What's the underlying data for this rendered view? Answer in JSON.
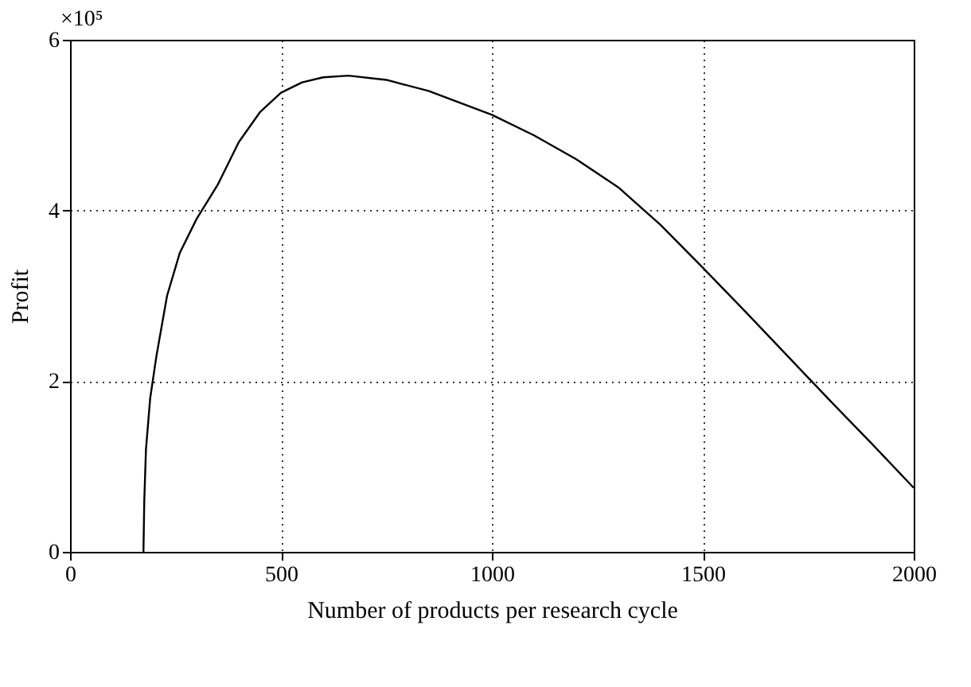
{
  "chart_data": {
    "type": "line",
    "xlabel": "Number of products per research cycle",
    "ylabel": "Profit",
    "annotations": [
      "×10⁵"
    ],
    "xlim": [
      0,
      2000
    ],
    "xticks": [
      0,
      500,
      1000,
      1500,
      2000
    ],
    "ylim": [
      0,
      6
    ],
    "yticks": [
      0,
      2,
      4,
      6
    ],
    "grid": true,
    "line_style": "solid",
    "marker": "none",
    "series": [
      {
        "color": "#000000",
        "x": [
          174,
          176,
          180,
          190,
          205,
          230,
          260,
          300,
          350,
          400,
          450,
          500,
          550,
          600,
          660,
          750,
          850,
          1000,
          1100,
          1200,
          1300,
          1400,
          1500,
          1600,
          1700,
          1800,
          1900,
          2000
        ],
        "values": [
          0,
          0.6,
          1.2,
          1.8,
          2.3,
          3.0,
          3.5,
          3.9,
          4.3,
          4.8,
          5.15,
          5.38,
          5.5,
          5.56,
          5.58,
          5.53,
          5.4,
          5.12,
          4.88,
          4.6,
          4.27,
          3.83,
          3.33,
          2.82,
          2.3,
          1.78,
          1.27,
          0.75
        ]
      }
    ]
  }
}
